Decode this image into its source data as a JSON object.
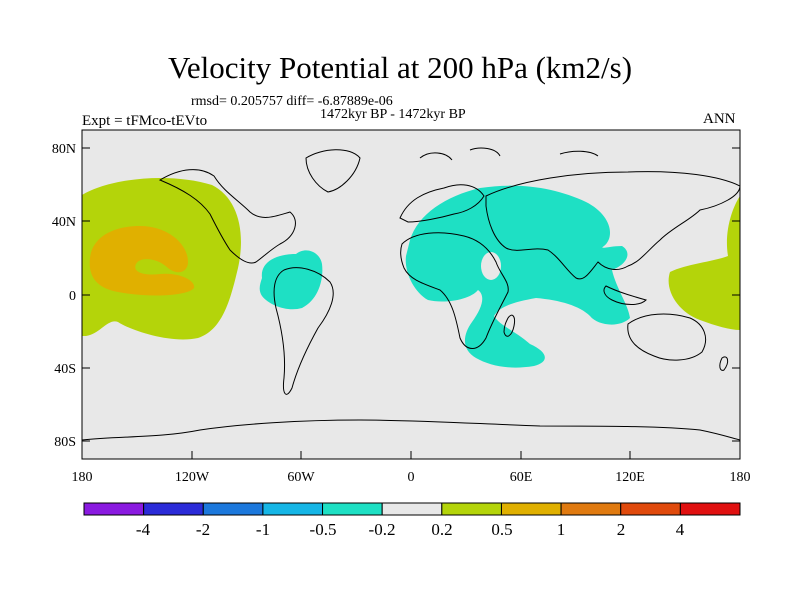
{
  "title": "Velocity Potential at 200 hPa (km2/s)",
  "stats": "rmsd= 0.205757 diff= -6.87889e-06",
  "period": "1472kyr BP - 1472kyr BP",
  "experiment": "Expt = tFMco-tEVto",
  "season": "ANN",
  "map": {
    "y_ticks": [
      "80N",
      "40N",
      "0",
      "40S",
      "80S"
    ],
    "x_ticks": [
      "180",
      "120W",
      "60W",
      "0",
      "60E",
      "120E",
      "180"
    ],
    "background_color": "#e8e8e8"
  },
  "colorbar": {
    "labels": [
      "-4",
      "-2",
      "-1",
      "-0.5",
      "-0.2",
      "0.2",
      "0.5",
      "1",
      "2",
      "4"
    ],
    "colors": [
      "#8a1ae0",
      "#2b2bd8",
      "#1c78dc",
      "#16b6e6",
      "#1ee0c4",
      "#e8e8e8",
      "#b4d40a",
      "#e0b000",
      "#e07a10",
      "#e04a0c",
      "#e01010"
    ]
  }
}
